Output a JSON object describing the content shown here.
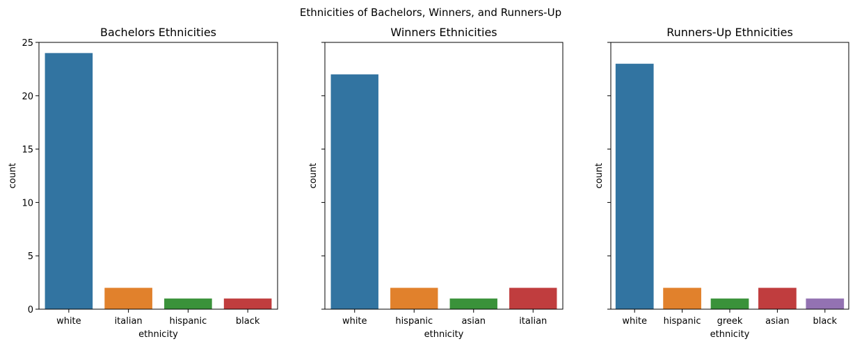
{
  "figure_title": "Ethnicities of Bachelors, Winners, and Runners-Up",
  "chart_data": [
    {
      "type": "bar",
      "title": "Bachelors Ethnicities",
      "xlabel": "ethnicity",
      "ylabel": "count",
      "ylim": [
        0,
        25
      ],
      "yticks": [
        0,
        5,
        10,
        15,
        20,
        25
      ],
      "show_ytick_labels": true,
      "categories": [
        "white",
        "italian",
        "hispanic",
        "black"
      ],
      "values": [
        24,
        2,
        1,
        1
      ],
      "colors": [
        "#3274a1",
        "#e1812c",
        "#3a923a",
        "#c03d3e"
      ]
    },
    {
      "type": "bar",
      "title": "Winners Ethnicities",
      "xlabel": "ethnicity",
      "ylabel": "count",
      "ylim": [
        0,
        25
      ],
      "yticks": [
        0,
        5,
        10,
        15,
        20,
        25
      ],
      "show_ytick_labels": false,
      "categories": [
        "white",
        "hispanic",
        "asian",
        "italian"
      ],
      "values": [
        22,
        2,
        1,
        2
      ],
      "colors": [
        "#3274a1",
        "#e1812c",
        "#3a923a",
        "#c03d3e"
      ]
    },
    {
      "type": "bar",
      "title": "Runners-Up Ethnicities",
      "xlabel": "ethnicity",
      "ylabel": "count",
      "ylim": [
        0,
        25
      ],
      "yticks": [
        0,
        5,
        10,
        15,
        20,
        25
      ],
      "show_ytick_labels": false,
      "categories": [
        "white",
        "hispanic",
        "greek",
        "asian",
        "black"
      ],
      "values": [
        23,
        2,
        1,
        2,
        1
      ],
      "colors": [
        "#3274a1",
        "#e1812c",
        "#3a923a",
        "#c03d3e",
        "#9372b2"
      ]
    }
  ]
}
